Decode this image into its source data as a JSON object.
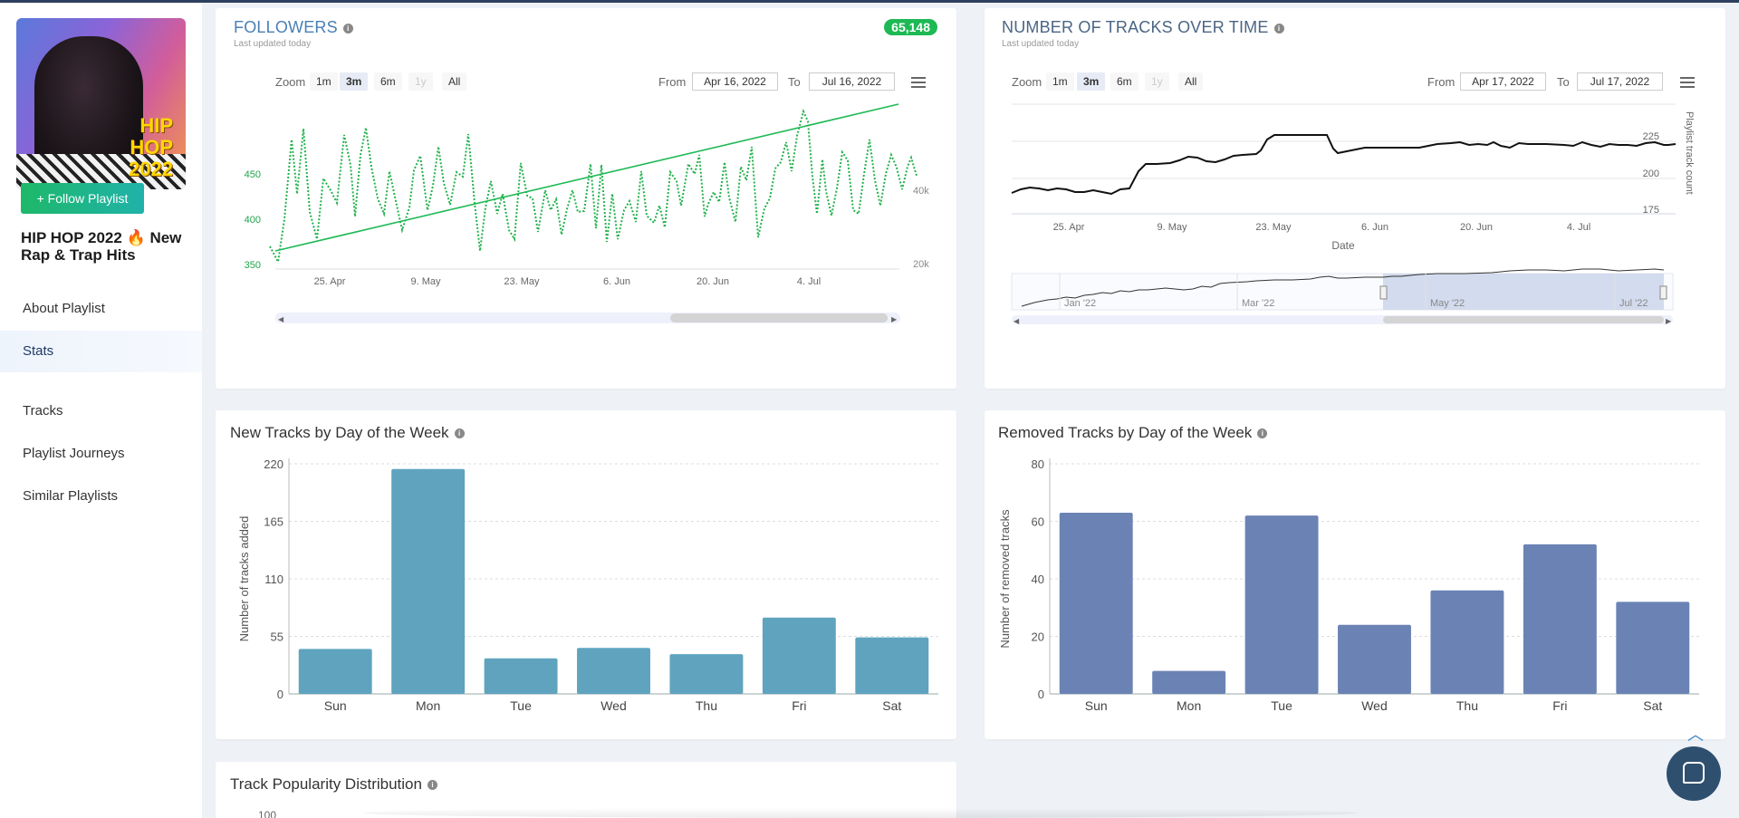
{
  "sidebar": {
    "cover_text": "HIP HOP 2022",
    "follow_label": "+ Follow Playlist",
    "playlist_title": "HIP HOP 2022 🔥 New Rap & Trap Hits",
    "nav": [
      {
        "label": "About Playlist",
        "active": false
      },
      {
        "label": "Stats",
        "active": true
      },
      {
        "label": "Tracks",
        "active": false
      },
      {
        "label": "Playlist Journeys",
        "active": false
      },
      {
        "label": "Similar Playlists",
        "active": false
      }
    ]
  },
  "followers": {
    "title": "FOLLOWERS",
    "updated": "Last updated today",
    "count": "65,148",
    "zoom_label": "Zoom",
    "zoom": [
      "1m",
      "3m",
      "6m",
      "1y",
      "All"
    ],
    "from_label": "From",
    "to_label": "To",
    "from": "Apr 16, 2022",
    "to": "Jul 16, 2022",
    "chart": {
      "type": "line",
      "left_ticks": [
        "450",
        "400",
        "350"
      ],
      "right_ticks": [
        "40k",
        "20k"
      ],
      "x_ticks": [
        "25. Apr",
        "9. May",
        "23. May",
        "6. Jun",
        "20. Jun",
        "4. Jul"
      ]
    }
  },
  "tracks_over_time": {
    "title": "NUMBER OF TRACKS OVER TIME",
    "updated": "Last updated today",
    "zoom_label": "Zoom",
    "zoom": [
      "1m",
      "3m",
      "6m",
      "1y",
      "All"
    ],
    "from_label": "From",
    "to_label": "To",
    "from": "Apr 17, 2022",
    "to": "Jul 17, 2022",
    "chart": {
      "type": "line",
      "y_label": "Playlist track count",
      "x_label": "Date",
      "y_ticks": [
        "225",
        "200",
        "175"
      ],
      "x_ticks": [
        "25. Apr",
        "9. May",
        "23. May",
        "6. Jun",
        "20. Jun",
        "4. Jul"
      ],
      "navigator_ticks": [
        "Jan '22",
        "Mar '22",
        "May '22",
        "Jul '22"
      ]
    }
  },
  "new_tracks": {
    "title": "New Tracks by Day of the Week",
    "color": "#5fa3bf"
  },
  "removed_tracks": {
    "title": "Removed Tracks by Day of the Week",
    "color": "#6b83b4"
  },
  "popularity": {
    "title": "Track Popularity Distribution",
    "y_tick_top": "100"
  },
  "chart_data": [
    {
      "type": "bar",
      "title": "New Tracks by Day of the Week",
      "xlabel": "",
      "ylabel": "Number of tracks added",
      "categories": [
        "Sun",
        "Mon",
        "Tue",
        "Wed",
        "Thu",
        "Fri",
        "Sat"
      ],
      "values": [
        43,
        215,
        34,
        44,
        38,
        73,
        54
      ],
      "ylim": [
        0,
        220
      ],
      "yticks": [
        0,
        55,
        110,
        165,
        220
      ],
      "grid": true
    },
    {
      "type": "bar",
      "title": "Removed Tracks by Day of the Week",
      "xlabel": "",
      "ylabel": "Number of removed tracks",
      "categories": [
        "Sun",
        "Mon",
        "Tue",
        "Wed",
        "Thu",
        "Fri",
        "Sat"
      ],
      "values": [
        63,
        8,
        62,
        24,
        36,
        52,
        32
      ],
      "ylim": [
        0,
        80
      ],
      "yticks": [
        0,
        20,
        40,
        60,
        80
      ],
      "grid": true
    }
  ]
}
